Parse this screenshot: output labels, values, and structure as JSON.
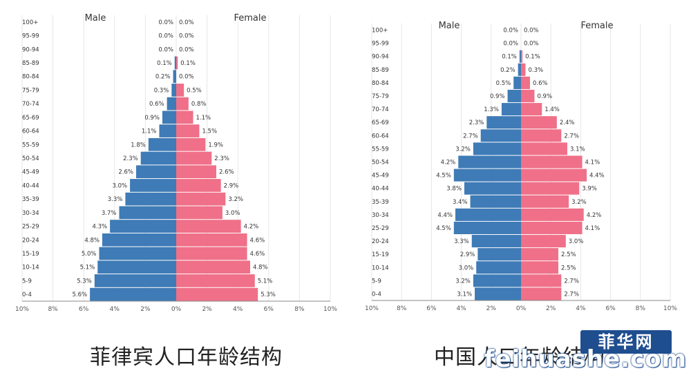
{
  "chart_data": [
    {
      "type": "bar",
      "subtype": "population-pyramid",
      "title": "菲律宾人口年龄结构",
      "left_label": "Male",
      "right_label": "Female",
      "categories": [
        "100+",
        "95-99",
        "90-94",
        "85-89",
        "80-84",
        "75-79",
        "70-74",
        "65-69",
        "60-64",
        "55-59",
        "50-54",
        "45-49",
        "40-44",
        "35-39",
        "30-34",
        "25-29",
        "20-24",
        "15-19",
        "10-14",
        "5-9",
        "0-4"
      ],
      "male": [
        0.0,
        0.0,
        0.0,
        0.1,
        0.2,
        0.3,
        0.6,
        0.9,
        1.1,
        1.8,
        2.3,
        2.6,
        3.0,
        3.3,
        3.7,
        4.3,
        4.8,
        5.0,
        5.1,
        5.3,
        5.6
      ],
      "female": [
        0.0,
        0.0,
        0.0,
        0.1,
        0.0,
        0.5,
        0.8,
        1.1,
        1.5,
        1.9,
        2.3,
        2.6,
        2.9,
        3.2,
        3.0,
        4.2,
        4.6,
        4.6,
        4.8,
        5.1,
        5.3
      ],
      "male_labels": [
        "0.0%",
        "0.0%",
        "0.0%",
        "0.1%",
        "0.2%",
        "0.3%",
        "0.6%",
        "0.9%",
        "1.1%",
        "1.8%",
        "2.3%",
        "2.6%",
        "3.0%",
        "3.3%",
        "3.7%",
        "4.3%",
        "4.8%",
        "5.0%",
        "5.1%",
        "5.3%",
        "5.6%"
      ],
      "female_labels": [
        "0.0%",
        "0.0%",
        "0.0%",
        "0.1%",
        "0.0%",
        "0.5%",
        "0.8%",
        "1.1%",
        "1.5%",
        "1.9%",
        "2.3%",
        "2.6%",
        "2.9%",
        "3.2%",
        "3.0%",
        "4.2%",
        "4.6%",
        "4.6%",
        "4.8%",
        "5.1%",
        "5.3%"
      ],
      "x_ticks": [
        "10%",
        "8%",
        "6%",
        "4%",
        "2%",
        "0%",
        "2%",
        "4%",
        "6%",
        "8%",
        "10%"
      ],
      "xlim": [
        -10,
        10
      ],
      "colors": {
        "male": "#3f7bb6",
        "female": "#ef7088"
      }
    },
    {
      "type": "bar",
      "subtype": "population-pyramid",
      "title": "中国人口年龄结构",
      "left_label": "Male",
      "right_label": "Female",
      "categories": [
        "100+",
        "95-99",
        "90-94",
        "85-89",
        "80-84",
        "75-79",
        "70-74",
        "65-69",
        "60-64",
        "55-59",
        "50-54",
        "45-49",
        "40-44",
        "35-39",
        "30-34",
        "25-29",
        "20-24",
        "15-19",
        "10-14",
        "5-9",
        "0-4"
      ],
      "male": [
        0.0,
        0.0,
        0.1,
        0.2,
        0.5,
        0.9,
        1.3,
        2.3,
        2.7,
        3.2,
        4.2,
        4.5,
        3.8,
        3.4,
        4.4,
        4.5,
        3.3,
        2.9,
        3.0,
        3.2,
        3.1
      ],
      "female": [
        0.0,
        0.0,
        0.1,
        0.3,
        0.6,
        0.9,
        1.4,
        2.4,
        2.7,
        3.1,
        4.1,
        4.4,
        3.9,
        3.2,
        4.2,
        4.1,
        3.0,
        2.5,
        2.5,
        2.7,
        2.7
      ],
      "male_labels": [
        "0.0%",
        "0.0%",
        "0.1%",
        "0.2%",
        "0.5%",
        "0.9%",
        "1.3%",
        "2.3%",
        "2.7%",
        "3.2%",
        "4.2%",
        "4.5%",
        "3.8%",
        "3.4%",
        "4.4%",
        "4.5%",
        "3.3%",
        "2.9%",
        "3.0%",
        "3.2%",
        "3.1%"
      ],
      "female_labels": [
        "0.0%",
        "0.0%",
        "0.1%",
        "0.3%",
        "0.6%",
        "0.9%",
        "1.4%",
        "2.4%",
        "2.7%",
        "3.1%",
        "4.1%",
        "4.4%",
        "3.9%",
        "3.2%",
        "4.2%",
        "4.1%",
        "3.0%",
        "2.5%",
        "2.5%",
        "2.7%",
        "2.7%"
      ],
      "x_ticks": [
        "10%",
        "8%",
        "6%",
        "4%",
        "2%",
        "0%",
        "2%",
        "4%",
        "6%",
        "8%",
        "10%"
      ],
      "xlim": [
        -10,
        10
      ],
      "colors": {
        "male": "#3f7bb6",
        "female": "#ef7088"
      }
    }
  ],
  "watermark": {
    "stamp": "菲华网",
    "domain": "feihuashe.com"
  }
}
